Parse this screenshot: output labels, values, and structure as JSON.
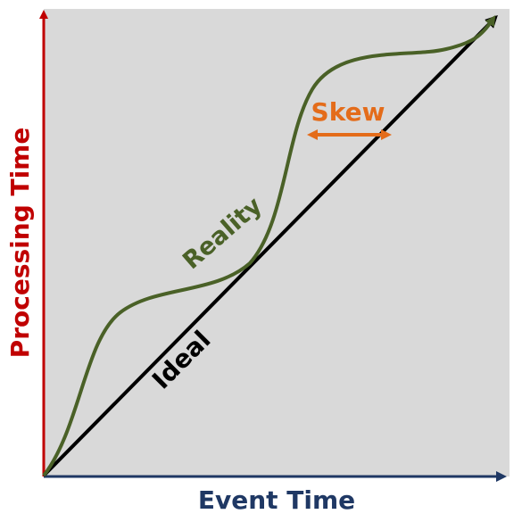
{
  "diagram": {
    "x_axis_label": "Event Time",
    "y_axis_label": "Processing Time",
    "ideal_label": "Ideal",
    "reality_label": "Reality",
    "skew_label": "Skew"
  },
  "colors": {
    "plot_background": "#d9d9d9",
    "x_axis": "#1f3864",
    "y_axis": "#c00000",
    "ideal_line": "#000000",
    "reality_line": "#4a6127",
    "skew": "#e46c1a"
  }
}
